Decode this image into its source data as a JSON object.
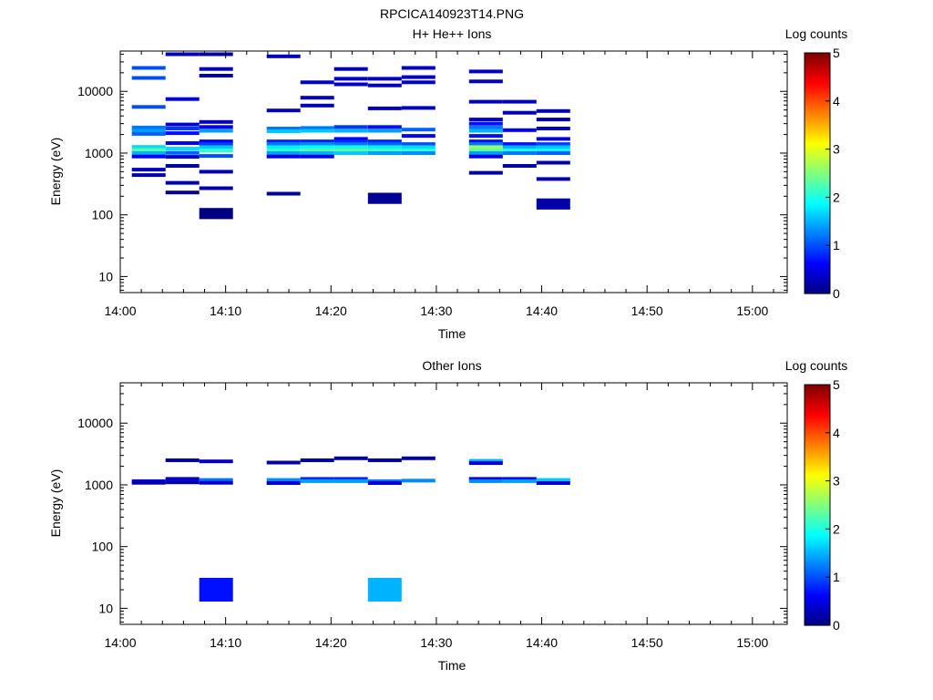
{
  "figure_title": "RPCICA140923T14.PNG",
  "chart_data": [
    {
      "type": "heatmap",
      "title": "H+ He++ Ions",
      "xlabel": "Time",
      "ylabel": "Energy (eV)",
      "yscale": "log",
      "x_ticks": [
        "14:00",
        "14:10",
        "14:20",
        "14:30",
        "14:40",
        "14:50",
        "15:00"
      ],
      "x_tick_minutes": [
        0,
        10,
        20,
        30,
        40,
        50,
        60
      ],
      "xlim_minutes": [
        0,
        63.3
      ],
      "y_ticks": [
        10,
        100,
        1000,
        10000
      ],
      "y_tick_labels": [
        "10",
        "100",
        "1000",
        "10000"
      ],
      "ylim": [
        5.5,
        45000
      ],
      "colorbar": {
        "label": "Log counts",
        "ticks": [
          "0",
          "1",
          "2",
          "3",
          "4",
          "5"
        ],
        "range": [
          0,
          5
        ],
        "colormap": "jet"
      },
      "cells": [
        [
          1.1,
          4.3,
          24000,
          1
        ],
        [
          1.1,
          4.3,
          16500,
          1
        ],
        [
          1.1,
          4.3,
          5600,
          1
        ],
        [
          1.1,
          4.3,
          2600,
          1.2
        ],
        [
          1.1,
          4.3,
          2300,
          1.4
        ],
        [
          1.1,
          4.3,
          2050,
          1.1
        ],
        [
          1.1,
          4.3,
          1260,
          1.7
        ],
        [
          1.1,
          4.3,
          1120,
          2.3
        ],
        [
          1.1,
          4.3,
          1000,
          1.5
        ],
        [
          1.1,
          4.3,
          880,
          0.6
        ],
        [
          1.1,
          4.3,
          540,
          0.3
        ],
        [
          1.1,
          4.3,
          440,
          0.2
        ],
        [
          4.3,
          7.5,
          40000,
          0.3
        ],
        [
          4.3,
          7.5,
          7500,
          0.5
        ],
        [
          4.3,
          7.5,
          2900,
          0.4
        ],
        [
          4.3,
          7.5,
          2500,
          0.9
        ],
        [
          4.3,
          7.5,
          2100,
          0.7
        ],
        [
          4.3,
          7.5,
          1450,
          0.6
        ],
        [
          4.3,
          7.5,
          1180,
          1.7
        ],
        [
          4.3,
          7.5,
          1010,
          1.1
        ],
        [
          4.3,
          7.5,
          870,
          0.4
        ],
        [
          4.3,
          7.5,
          620,
          0.2
        ],
        [
          4.3,
          7.5,
          330,
          0.2
        ],
        [
          4.3,
          7.5,
          230,
          0.1
        ],
        [
          7.5,
          10.7,
          40000,
          0.2
        ],
        [
          7.5,
          10.7,
          23000,
          0.3
        ],
        [
          7.5,
          10.7,
          18000,
          0.2
        ],
        [
          7.5,
          10.7,
          3200,
          0.3
        ],
        [
          7.5,
          10.7,
          2650,
          0.6
        ],
        [
          7.5,
          10.7,
          2300,
          1.4
        ],
        [
          7.5,
          10.7,
          1550,
          0.6
        ],
        [
          7.5,
          10.7,
          1400,
          0.9
        ],
        [
          7.5,
          10.7,
          1250,
          1.6
        ],
        [
          7.5,
          10.7,
          1100,
          2.1
        ],
        [
          7.5,
          10.7,
          900,
          1.0
        ],
        [
          7.5,
          10.7,
          500,
          0.2
        ],
        [
          7.5,
          10.7,
          270,
          0.2
        ],
        [
          7.5,
          10.7,
          105,
          0.0
        ],
        [
          13.9,
          17.1,
          37000,
          0.3
        ],
        [
          13.9,
          17.1,
          4900,
          0.3
        ],
        [
          13.9,
          17.1,
          2500,
          1.2
        ],
        [
          13.9,
          17.1,
          2250,
          1.6
        ],
        [
          13.9,
          17.1,
          1550,
          0.8
        ],
        [
          13.9,
          17.1,
          1400,
          1.2
        ],
        [
          13.9,
          17.1,
          1250,
          1.8
        ],
        [
          13.9,
          17.1,
          1100,
          2.1
        ],
        [
          13.9,
          17.1,
          1000,
          1.4
        ],
        [
          13.9,
          17.1,
          880,
          0.5
        ],
        [
          13.9,
          17.1,
          220,
          0.1
        ],
        [
          17.1,
          20.3,
          14000,
          0.3
        ],
        [
          17.1,
          20.3,
          7900,
          0.3
        ],
        [
          17.1,
          20.3,
          5900,
          0.3
        ],
        [
          17.1,
          20.3,
          2550,
          1.2
        ],
        [
          17.1,
          20.3,
          2300,
          1.6
        ],
        [
          17.1,
          20.3,
          1550,
          0.8
        ],
        [
          17.1,
          20.3,
          1400,
          1.3
        ],
        [
          17.1,
          20.3,
          1250,
          1.9
        ],
        [
          17.1,
          20.3,
          1100,
          2.3
        ],
        [
          17.1,
          20.3,
          1000,
          1.5
        ],
        [
          17.1,
          20.3,
          880,
          0.5
        ],
        [
          20.3,
          23.5,
          23000,
          0.3
        ],
        [
          20.3,
          23.5,
          16000,
          0.3
        ],
        [
          20.3,
          23.5,
          13000,
          0.3
        ],
        [
          20.3,
          23.5,
          2650,
          0.9
        ],
        [
          20.3,
          23.5,
          2300,
          1.5
        ],
        [
          20.3,
          23.5,
          1700,
          0.6
        ],
        [
          20.3,
          23.5,
          1550,
          0.8
        ],
        [
          20.3,
          23.5,
          1400,
          1.2
        ],
        [
          20.3,
          23.5,
          1250,
          1.9
        ],
        [
          20.3,
          23.5,
          1100,
          2.4
        ],
        [
          20.3,
          23.5,
          1000,
          1.6
        ],
        [
          23.5,
          26.7,
          16000,
          0.3
        ],
        [
          23.5,
          26.7,
          12500,
          0.3
        ],
        [
          23.5,
          26.7,
          5300,
          0.3
        ],
        [
          23.5,
          26.7,
          2650,
          0.7
        ],
        [
          23.5,
          26.7,
          2300,
          1.4
        ],
        [
          23.5,
          26.7,
          1550,
          0.8
        ],
        [
          23.5,
          26.7,
          1400,
          1.1
        ],
        [
          23.5,
          26.7,
          1250,
          1.8
        ],
        [
          23.5,
          26.7,
          1100,
          2.2
        ],
        [
          23.5,
          26.7,
          1000,
          1.4
        ],
        [
          23.5,
          26.7,
          185,
          0.1
        ],
        [
          26.7,
          29.9,
          24000,
          0.3
        ],
        [
          26.7,
          29.9,
          17000,
          0.3
        ],
        [
          26.7,
          29.9,
          14000,
          0.3
        ],
        [
          26.7,
          29.9,
          5400,
          0.3
        ],
        [
          26.7,
          29.9,
          2400,
          1.1
        ],
        [
          26.7,
          29.9,
          1900,
          0.6
        ],
        [
          26.7,
          29.9,
          1400,
          1.0
        ],
        [
          26.7,
          29.9,
          1250,
          1.7
        ],
        [
          26.7,
          29.9,
          1100,
          2.1
        ],
        [
          26.7,
          29.9,
          1000,
          1.3
        ],
        [
          33.1,
          36.3,
          21000,
          0.3
        ],
        [
          33.1,
          36.3,
          14500,
          0.3
        ],
        [
          33.1,
          36.3,
          6800,
          0.3
        ],
        [
          33.1,
          36.3,
          3500,
          0.4
        ],
        [
          33.1,
          36.3,
          3000,
          0.7
        ],
        [
          33.1,
          36.3,
          2600,
          1.2
        ],
        [
          33.1,
          36.3,
          2300,
          1.5
        ],
        [
          33.1,
          36.3,
          1900,
          0.7
        ],
        [
          33.1,
          36.3,
          1550,
          0.7
        ],
        [
          33.1,
          36.3,
          1400,
          1.2
        ],
        [
          33.1,
          36.3,
          1250,
          2.6
        ],
        [
          33.1,
          36.3,
          1100,
          2.3
        ],
        [
          33.1,
          36.3,
          1000,
          1.4
        ],
        [
          33.1,
          36.3,
          880,
          0.5
        ],
        [
          33.1,
          36.3,
          480,
          0.2
        ],
        [
          36.3,
          39.5,
          6800,
          0.3
        ],
        [
          36.3,
          39.5,
          4500,
          0.3
        ],
        [
          36.3,
          39.5,
          2350,
          0.6
        ],
        [
          36.3,
          39.5,
          1400,
          0.7
        ],
        [
          36.3,
          39.5,
          1250,
          1.5
        ],
        [
          36.3,
          39.5,
          1100,
          2.0
        ],
        [
          36.3,
          39.5,
          1000,
          1.2
        ],
        [
          36.3,
          39.5,
          620,
          0.2
        ],
        [
          39.5,
          42.7,
          4800,
          0.3
        ],
        [
          39.5,
          42.7,
          3500,
          0.2
        ],
        [
          39.5,
          42.7,
          2500,
          0.3
        ],
        [
          39.5,
          42.7,
          1700,
          0.4
        ],
        [
          39.5,
          42.7,
          1400,
          0.9
        ],
        [
          39.5,
          42.7,
          1250,
          1.6
        ],
        [
          39.5,
          42.7,
          1100,
          1.9
        ],
        [
          39.5,
          42.7,
          1000,
          1.1
        ],
        [
          39.5,
          42.7,
          700,
          0.2
        ],
        [
          39.5,
          42.7,
          380,
          0.2
        ],
        [
          39.5,
          42.7,
          150,
          0.2
        ]
      ]
    },
    {
      "type": "heatmap",
      "title": "Other Ions",
      "xlabel": "Time",
      "ylabel": "Energy (eV)",
      "yscale": "log",
      "x_ticks": [
        "14:00",
        "14:10",
        "14:20",
        "14:30",
        "14:40",
        "14:50",
        "15:00"
      ],
      "x_tick_minutes": [
        0,
        10,
        20,
        30,
        40,
        50,
        60
      ],
      "xlim_minutes": [
        0,
        63.3
      ],
      "y_ticks": [
        10,
        100,
        1000,
        10000
      ],
      "y_tick_labels": [
        "10",
        "100",
        "1000",
        "10000"
      ],
      "ylim": [
        5.5,
        45000
      ],
      "colorbar": {
        "label": "Log counts",
        "ticks": [
          "0",
          "1",
          "2",
          "3",
          "4",
          "5"
        ],
        "range": [
          0,
          5
        ],
        "colormap": "jet"
      },
      "cells": [
        [
          1.1,
          4.3,
          1150,
          0.5
        ],
        [
          1.1,
          4.3,
          1080,
          0.2
        ],
        [
          4.3,
          7.5,
          2500,
          0.2
        ],
        [
          4.3,
          7.5,
          1250,
          0.4
        ],
        [
          4.3,
          7.5,
          1100,
          0.2
        ],
        [
          7.5,
          10.7,
          2400,
          0.3
        ],
        [
          7.5,
          10.7,
          1200,
          1.2
        ],
        [
          7.5,
          10.7,
          1080,
          0.4
        ],
        [
          7.5,
          10.7,
          20,
          0.7
        ],
        [
          13.9,
          17.1,
          2300,
          0.2
        ],
        [
          13.9,
          17.1,
          1200,
          1.3
        ],
        [
          13.9,
          17.1,
          1070,
          0.4
        ],
        [
          17.1,
          20.3,
          2500,
          0.2
        ],
        [
          17.1,
          20.3,
          1250,
          0.8
        ],
        [
          17.1,
          20.3,
          1150,
          1.4
        ],
        [
          20.3,
          23.5,
          2700,
          0.2
        ],
        [
          20.3,
          23.5,
          1250,
          0.8
        ],
        [
          20.3,
          23.5,
          1150,
          1.4
        ],
        [
          23.5,
          26.7,
          2500,
          0.2
        ],
        [
          23.5,
          26.7,
          1150,
          1.2
        ],
        [
          23.5,
          26.7,
          1070,
          0.4
        ],
        [
          23.5,
          26.7,
          20,
          1.5
        ],
        [
          26.7,
          29.9,
          2700,
          0.2
        ],
        [
          26.7,
          29.9,
          1170,
          1.3
        ],
        [
          33.1,
          36.3,
          2450,
          1.5
        ],
        [
          33.1,
          36.3,
          2250,
          0.4
        ],
        [
          33.1,
          36.3,
          1250,
          0.5
        ],
        [
          33.1,
          36.3,
          1150,
          1.3
        ],
        [
          36.3,
          39.5,
          1250,
          0.6
        ],
        [
          36.3,
          39.5,
          1150,
          1.4
        ],
        [
          39.5,
          42.7,
          1200,
          1.6
        ],
        [
          39.5,
          42.7,
          1070,
          0.4
        ]
      ]
    }
  ]
}
